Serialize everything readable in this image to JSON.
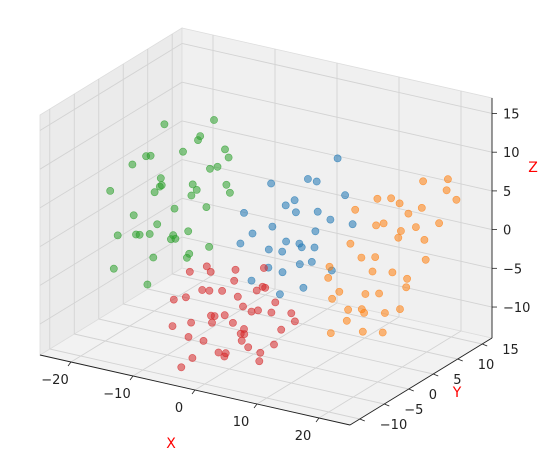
{
  "chart_data": {
    "type": "scatter",
    "projection": "3d",
    "xlabel": "X",
    "ylabel": "Y",
    "zlabel": "Z",
    "axis_label_color": "#ff0000",
    "xlim": [
      -25,
      25
    ],
    "ylim": [
      -12,
      17
    ],
    "zlim": [
      -14,
      17
    ],
    "xticks": [
      -20,
      -10,
      0,
      10,
      20
    ],
    "yticks": [
      -10,
      -5,
      0,
      5,
      10,
      15
    ],
    "zticks": [
      -10,
      -5,
      0,
      5,
      10,
      15
    ],
    "grid": true,
    "pane_color": "#f0f0f0",
    "marker_alpha": 0.55,
    "series": [
      {
        "color": "#1f77b4",
        "points": [
          [
            0,
            -2,
            5
          ],
          [
            3,
            0,
            3
          ],
          [
            5,
            2,
            6
          ],
          [
            7,
            4,
            8
          ],
          [
            2,
            4,
            4
          ],
          [
            6,
            -1,
            2
          ],
          [
            9,
            1,
            1
          ],
          [
            4,
            6,
            7
          ],
          [
            8,
            7,
            10
          ],
          [
            1,
            -4,
            2
          ],
          [
            10,
            3,
            4
          ],
          [
            12,
            5,
            3
          ],
          [
            3,
            2,
            -1
          ],
          [
            6,
            5,
            1
          ],
          [
            2,
            -3,
            -3
          ],
          [
            5,
            -1,
            -5
          ],
          [
            7,
            3,
            -2
          ],
          [
            4,
            8,
            2
          ],
          [
            9,
            -2,
            0
          ],
          [
            -1,
            1,
            1
          ],
          [
            8,
            0,
            -4
          ],
          [
            11,
            2,
            -2
          ],
          [
            3,
            6,
            -2
          ],
          [
            0,
            3,
            -4
          ],
          [
            6,
            1,
            5
          ],
          [
            5,
            3,
            0
          ],
          [
            10,
            6,
            6
          ],
          [
            2,
            1,
            8
          ],
          [
            7,
            -3,
            -1
          ],
          [
            4,
            -2,
            1
          ]
        ]
      },
      {
        "color": "#ff7f0e",
        "points": [
          [
            14,
            2,
            2
          ],
          [
            15,
            3,
            0
          ],
          [
            16,
            4,
            -2
          ],
          [
            17,
            5,
            4
          ],
          [
            18,
            2,
            1
          ],
          [
            19,
            6,
            3
          ],
          [
            20,
            3,
            -1
          ],
          [
            21,
            5,
            6
          ],
          [
            22,
            7,
            2
          ],
          [
            23,
            4,
            5
          ],
          [
            24,
            9,
            8
          ],
          [
            25,
            8,
            10
          ],
          [
            18,
            0,
            -3
          ],
          [
            16,
            -1,
            -5
          ],
          [
            15,
            0,
            -7
          ],
          [
            17,
            1,
            -6
          ],
          [
            19,
            -2,
            -4
          ],
          [
            20,
            1,
            -8
          ],
          [
            21,
            -1,
            -2
          ],
          [
            22,
            2,
            -5
          ],
          [
            14,
            -2,
            -8
          ],
          [
            13,
            1,
            -4
          ],
          [
            16,
            5,
            7
          ],
          [
            18,
            7,
            6
          ],
          [
            20,
            9,
            5
          ],
          [
            22,
            10,
            3
          ],
          [
            23,
            6,
            0
          ],
          [
            24,
            11,
            6
          ],
          [
            15,
            6,
            3
          ],
          [
            17,
            8,
            1
          ],
          [
            19,
            4,
            8
          ],
          [
            21,
            8,
            9
          ],
          [
            14,
            3,
            6
          ],
          [
            13,
            -1,
            0
          ],
          [
            16,
            2,
            -9
          ],
          [
            18,
            4,
            -7
          ],
          [
            20,
            6,
            -3
          ],
          [
            23,
            2,
            -2
          ],
          [
            12,
            0,
            -2
          ],
          [
            15,
            -3,
            -3
          ]
        ]
      },
      {
        "color": "#2ca02c",
        "points": [
          [
            -20,
            -4,
            5
          ],
          [
            -18,
            -2,
            8
          ],
          [
            -17,
            -3,
            2
          ],
          [
            -15,
            0,
            6
          ],
          [
            -14,
            -2,
            1
          ],
          [
            -13,
            2,
            9
          ],
          [
            -12,
            -1,
            3
          ],
          [
            -11,
            3,
            11
          ],
          [
            -10,
            1,
            5
          ],
          [
            -9,
            4,
            7
          ],
          [
            -8,
            2,
            14
          ],
          [
            -7,
            3,
            10
          ],
          [
            -19,
            0,
            -2
          ],
          [
            -17,
            1,
            -5
          ],
          [
            -16,
            -1,
            -1
          ],
          [
            -15,
            3,
            -3
          ],
          [
            -14,
            -4,
            -6
          ],
          [
            -13,
            0,
            -1
          ],
          [
            -12,
            2,
            -4
          ],
          [
            -11,
            -3,
            0
          ],
          [
            -10,
            3,
            2
          ],
          [
            -9,
            -2,
            1
          ],
          [
            -8,
            1,
            -2
          ],
          [
            -7,
            4,
            4
          ],
          [
            -21,
            -2,
            -6
          ],
          [
            -20,
            2,
            -3
          ],
          [
            -18,
            4,
            3
          ],
          [
            -16,
            2,
            12
          ],
          [
            -15,
            -3,
            10
          ],
          [
            -13,
            4,
            4
          ],
          [
            -12,
            -4,
            7
          ],
          [
            -9,
            0,
            12
          ],
          [
            -6,
            2,
            6
          ],
          [
            -18,
            -5,
            0
          ],
          [
            -14,
            5,
            2
          ],
          [
            -11,
            5,
            6
          ],
          [
            -16,
            0,
            4
          ],
          [
            -10,
            -1,
            -3
          ],
          [
            -8,
            5,
            8
          ],
          [
            -19,
            3,
            7
          ]
        ]
      },
      {
        "color": "#d62728",
        "points": [
          [
            -2,
            -6,
            -8
          ],
          [
            0,
            -8,
            -6
          ],
          [
            2,
            -5,
            -10
          ],
          [
            4,
            -7,
            -8
          ],
          [
            6,
            -4,
            -6
          ],
          [
            8,
            -6,
            -9
          ],
          [
            -4,
            -4,
            -5
          ],
          [
            -3,
            -9,
            -7
          ],
          [
            -1,
            -3,
            -9
          ],
          [
            1,
            -10,
            -5
          ],
          [
            3,
            -2,
            -4
          ],
          [
            5,
            -9,
            -7
          ],
          [
            7,
            -8,
            -4
          ],
          [
            9,
            -3,
            -7
          ],
          [
            -5,
            -7,
            -10
          ],
          [
            -6,
            -2,
            -3
          ],
          [
            -3,
            -5,
            -2
          ],
          [
            0,
            -4,
            -3
          ],
          [
            2,
            -9,
            -2
          ],
          [
            4,
            -3,
            -1
          ],
          [
            6,
            -7,
            -2
          ],
          [
            -2,
            -10,
            -11
          ],
          [
            0,
            -6,
            -12
          ],
          [
            3,
            -11,
            -9
          ],
          [
            5,
            -5,
            -11
          ],
          [
            -4,
            -8,
            -1
          ],
          [
            -1,
            -2,
            -6
          ],
          [
            1,
            -7,
            -11
          ],
          [
            8,
            -9,
            -10
          ],
          [
            10,
            -5,
            -5
          ],
          [
            -7,
            -5,
            -6
          ],
          [
            -5,
            -10,
            -4
          ],
          [
            2,
            -3,
            -7
          ],
          [
            4,
            -11,
            -4
          ],
          [
            6,
            -2,
            -9
          ],
          [
            -2,
            -8,
            -3
          ],
          [
            7,
            -10,
            -8
          ],
          [
            -6,
            -9,
            -8
          ],
          [
            1,
            -5,
            -1
          ],
          [
            3,
            -6,
            -5
          ],
          [
            -3,
            -11,
            -12
          ],
          [
            5,
            -4,
            -3
          ],
          [
            9,
            -7,
            -3
          ],
          [
            -1,
            -9,
            -9
          ],
          [
            0,
            -2,
            -10
          ]
        ]
      }
    ]
  }
}
